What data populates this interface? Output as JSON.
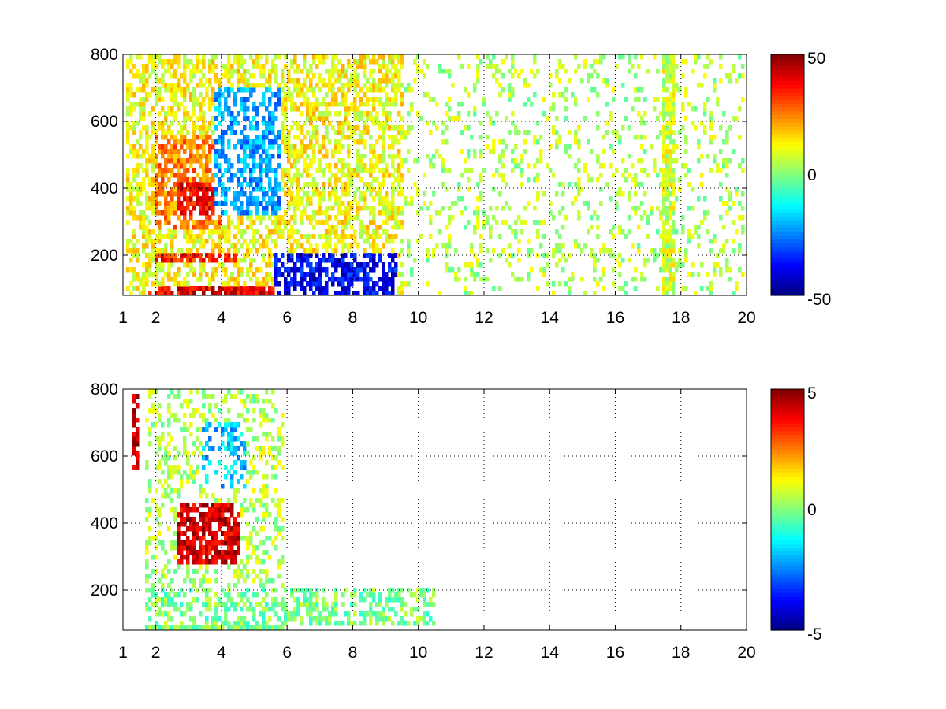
{
  "chart_data": [
    {
      "type": "heatmap",
      "x_ticks": [
        "1",
        "2",
        "4",
        "6",
        "8",
        "10",
        "12",
        "14",
        "16",
        "18",
        "20"
      ],
      "x_tick_values": [
        1,
        2,
        4,
        6,
        8,
        10,
        12,
        14,
        16,
        18,
        20
      ],
      "y_ticks": [
        "200",
        "400",
        "600",
        "800"
      ],
      "y_tick_values": [
        200,
        400,
        600,
        800
      ],
      "xlim": [
        1,
        20
      ],
      "ylim": [
        80,
        800
      ],
      "grid": true,
      "colorbar": {
        "ticks": [
          "50",
          "0",
          "-50"
        ],
        "range": [
          -50,
          50
        ]
      },
      "features": [
        {
          "x": [
            1.1,
            9.6
          ],
          "y": [
            80,
            800
          ],
          "v": 12,
          "density": 0.55
        },
        {
          "x": [
            2.0,
            4.0
          ],
          "y": [
            280,
            560
          ],
          "v": 25,
          "density": 0.7
        },
        {
          "x": [
            2.6,
            3.9
          ],
          "y": [
            320,
            420
          ],
          "v": 38,
          "density": 0.8
        },
        {
          "x": [
            3.8,
            5.8
          ],
          "y": [
            320,
            700
          ],
          "v": -22,
          "density": 0.55
        },
        {
          "x": [
            1.8,
            9.3
          ],
          "y": [
            80,
            105
          ],
          "v": 40,
          "density": 0.8
        },
        {
          "x": [
            5.6,
            9.4
          ],
          "y": [
            80,
            210
          ],
          "v": -38,
          "density": 0.6
        },
        {
          "x": [
            2.0,
            4.5
          ],
          "y": [
            185,
            205
          ],
          "v": 35,
          "density": 0.8
        },
        {
          "x": [
            9.6,
            20
          ],
          "y": [
            80,
            800
          ],
          "v": 5,
          "density": 0.18
        },
        {
          "x": [
            17.5,
            17.85
          ],
          "y": [
            80,
            800
          ],
          "v": 8,
          "density": 0.9
        }
      ]
    },
    {
      "type": "heatmap",
      "x_ticks": [
        "1",
        "2",
        "4",
        "6",
        "8",
        "10",
        "12",
        "14",
        "16",
        "18",
        "20"
      ],
      "x_tick_values": [
        1,
        2,
        4,
        6,
        8,
        10,
        12,
        14,
        16,
        18,
        20
      ],
      "y_ticks": [
        "200",
        "400",
        "600",
        "800"
      ],
      "y_tick_values": [
        200,
        400,
        600,
        800
      ],
      "xlim": [
        1,
        20
      ],
      "ylim": [
        80,
        800
      ],
      "grid": true,
      "colorbar": {
        "ticks": [
          "5",
          "0",
          "-5"
        ],
        "range": [
          -5,
          5
        ]
      },
      "features": [
        {
          "x": [
            1.7,
            5.9
          ],
          "y": [
            100,
            800
          ],
          "v": 0.5,
          "density": 0.3
        },
        {
          "x": [
            2.6,
            4.6
          ],
          "y": [
            280,
            460
          ],
          "v": 4.2,
          "density": 0.75
        },
        {
          "x": [
            3.4,
            4.8
          ],
          "y": [
            500,
            700
          ],
          "v": -1.8,
          "density": 0.35
        },
        {
          "x": [
            1.7,
            5.9
          ],
          "y": [
            80,
            100
          ],
          "v": 0,
          "density": 0.95
        },
        {
          "x": [
            1.7,
            10.5
          ],
          "y": [
            100,
            210
          ],
          "v": 0,
          "density": 0.45
        },
        {
          "x": [
            1.3,
            1.45
          ],
          "y": [
            560,
            790
          ],
          "v": 4.5,
          "density": 0.7
        }
      ]
    }
  ]
}
